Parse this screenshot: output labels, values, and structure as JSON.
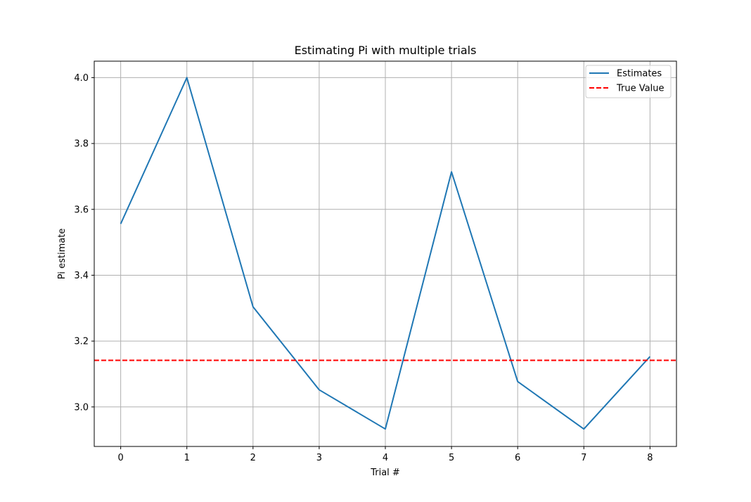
{
  "chart_data": {
    "type": "line",
    "title": "Estimating Pi with multiple trials",
    "xlabel": "Trial #",
    "ylabel": "Pi estimate",
    "x": [
      0,
      1,
      2,
      3,
      4,
      5,
      6,
      7,
      8
    ],
    "xticks": [
      "0",
      "1",
      "2",
      "3",
      "4",
      "5",
      "6",
      "7",
      "8"
    ],
    "yticks": [
      "3.0",
      "3.2",
      "3.4",
      "3.6",
      "3.8",
      "4.0"
    ],
    "xlim": [
      -0.4,
      8.4
    ],
    "ylim": [
      2.88,
      4.05
    ],
    "grid": true,
    "legend_position": "top-right",
    "series": [
      {
        "name": "Estimates",
        "style": "solid",
        "color": "#1f77b4",
        "values": [
          3.556,
          4.0,
          3.304,
          3.052,
          2.933,
          3.714,
          3.077,
          2.933,
          3.153
        ]
      },
      {
        "name": "True Value",
        "style": "dashed",
        "color": "#ff0000",
        "hline": 3.14159
      }
    ]
  }
}
